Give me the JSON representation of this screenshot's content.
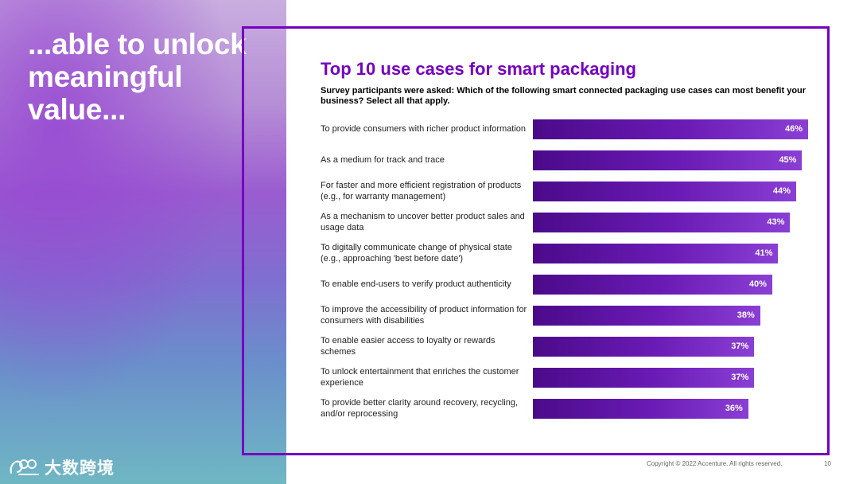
{
  "hero": {
    "text": "...able to unlock meaningful value..."
  },
  "watermark": {
    "text": "大数跨境"
  },
  "title": "Top 10 use cases for smart packaging",
  "subtitle": "Survey participants were asked: Which of the following smart connected packaging use cases can most benefit your business? Select all that apply.",
  "chart_data": {
    "type": "bar",
    "orientation": "horizontal",
    "title": "Top 10 use cases for smart packaging",
    "categories": [
      "To provide consumers with richer product information",
      "As a medium for track and trace",
      "For faster and more efficient registration of products (e.g., for warranty management)",
      "As a mechanism to uncover better product sales and usage data",
      "To digitally communicate change of physical state (e.g., approaching 'best before date')",
      "To enable end-users to verify product authenticity",
      "To improve the accessibility of product information for consumers with disabilities",
      "To enable easier access to loyalty or rewards schemes",
      "To unlock entertainment that enriches the customer experience",
      "To provide better clarity around recovery, recycling, and/or reprocessing"
    ],
    "values": [
      46,
      45,
      44,
      43,
      41,
      40,
      38,
      37,
      37,
      36
    ],
    "value_labels": [
      "46%",
      "45%",
      "44%",
      "43%",
      "41%",
      "40%",
      "38%",
      "37%",
      "37%",
      "36%"
    ],
    "unit": "%",
    "xlim": [
      0,
      46
    ],
    "bar_color": "#6a1bb5"
  },
  "footer": {
    "copyright": "Copyright © 2022 Accenture. All rights reserved.",
    "page_number": "10"
  },
  "colors": {
    "accent": "#7500c0",
    "text": "#222222"
  }
}
